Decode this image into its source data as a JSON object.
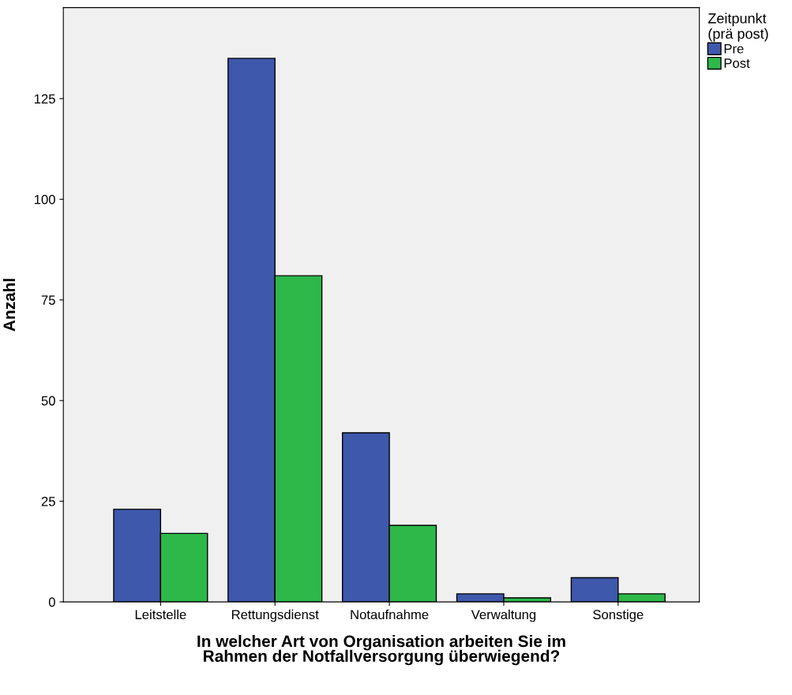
{
  "chart_data": {
    "type": "bar",
    "xlabel": "In welcher Art von Organisation arbeiten Sie im\nRahmen der Notfallversorgung überwiegend?",
    "ylabel": "Anzahl",
    "legend_title": "Zeitpunkt\n(prä post)",
    "categories": [
      "Leitstelle",
      "Rettungsdienst",
      "Notaufnahme",
      "Verwaltung",
      "Sonstige"
    ],
    "series": [
      {
        "name": "Pre",
        "color": "#3e58ac",
        "values": [
          23,
          135,
          42,
          2,
          6
        ]
      },
      {
        "name": "Post",
        "color": "#2eb84a",
        "values": [
          17,
          81,
          19,
          1,
          2
        ]
      }
    ],
    "ylim": [
      0,
      147.6
    ],
    "yticks": [
      0,
      25,
      50,
      75,
      100,
      125
    ],
    "grid": false,
    "legend": "top right"
  }
}
